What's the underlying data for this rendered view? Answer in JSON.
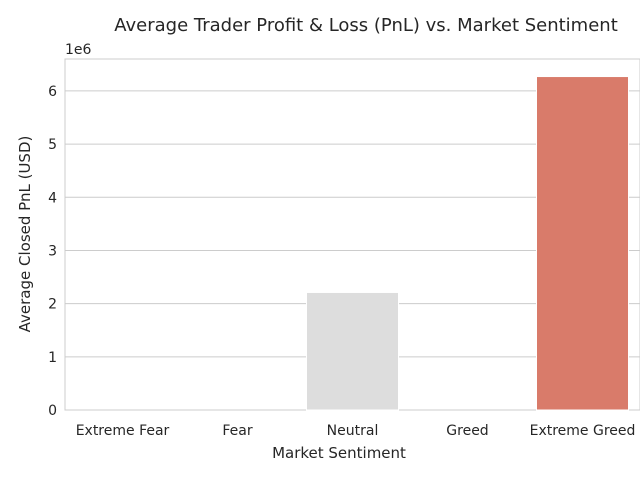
{
  "chart_data": {
    "type": "bar",
    "title": "Average Trader Profit & Loss (PnL) vs. Market Sentiment",
    "xlabel": "Market Sentiment",
    "ylabel": "Average Closed PnL (USD)",
    "offset_text": "1e6",
    "categories": [
      "Extreme Fear",
      "Fear",
      "Neutral",
      "Greed",
      "Extreme Greed"
    ],
    "values": [
      0,
      0,
      2210000,
      0,
      6270000
    ],
    "colors": [
      "#3b4cc0",
      "#8db0fe",
      "#dddddd",
      "#f4987a",
      "#d97b6a"
    ],
    "ylim": [
      0,
      6600000
    ],
    "yticks": [
      0,
      1,
      2,
      3,
      4,
      5,
      6
    ],
    "yticks_multiplier": 1000000,
    "grid": true
  }
}
